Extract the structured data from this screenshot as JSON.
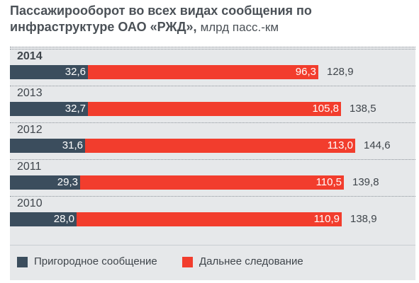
{
  "title": "Пассажирооборот во всех видах сообщения по инфраструктуре ОАО «РЖД»,",
  "title_unit": "млрд пасс.-км",
  "colors": {
    "suburban": "#3b4d5d",
    "long_distance": "#f23d2d",
    "panel": "#e6e8ea"
  },
  "chart_data": {
    "type": "bar",
    "orientation": "horizontal",
    "stacked": true,
    "title": "Пассажирооборот во всех видах сообщения по инфраструктуре ОАО «РЖД», млрд пасс.-км",
    "categories": [
      "2014",
      "2013",
      "2012",
      "2011",
      "2010"
    ],
    "category_labels": [
      "2014",
      "2013",
      "2012",
      "2011",
      "2010"
    ],
    "series": [
      {
        "name": "Пригородное сообщение",
        "values": [
          32.6,
          32.7,
          31.6,
          29.3,
          28.0
        ],
        "labels": [
          "32,6",
          "32,7",
          "31,6",
          "29,3",
          "28,0"
        ]
      },
      {
        "name": "Дальнее следование",
        "values": [
          96.3,
          105.8,
          113.0,
          110.5,
          110.9
        ],
        "labels": [
          "96,3",
          "105,8",
          "113,0",
          "110,5",
          "110,9"
        ]
      }
    ],
    "totals": [
      128.9,
      138.5,
      144.6,
      139.8,
      138.9
    ],
    "total_labels": [
      "128,9",
      "138,5",
      "144,6",
      "139,8",
      "138,9"
    ],
    "xlim": [
      0,
      160
    ],
    "grid": false,
    "legend_position": "bottom"
  },
  "legend": [
    {
      "label": "Пригородное сообщение"
    },
    {
      "label": "Дальнее следование"
    }
  ]
}
